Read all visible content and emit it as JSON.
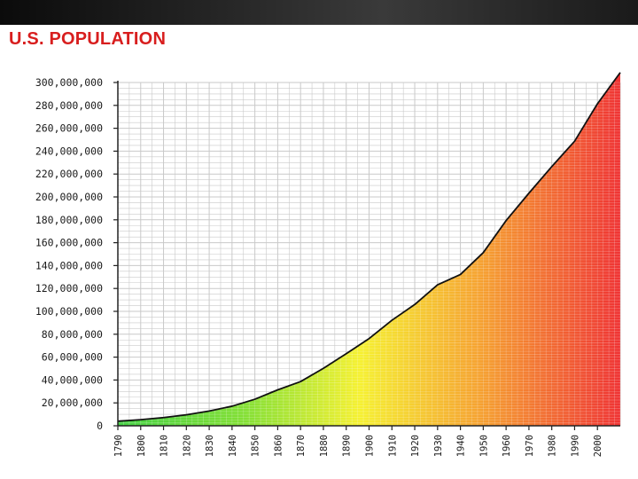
{
  "title": "U.S. POPULATION",
  "colors": {
    "title": "#d81e1e",
    "grid": "#c9c9c9",
    "curve": "#111111",
    "fill_low": "#33cc33",
    "fill_mid": "#f5f01e",
    "fill_high": "#ee2222"
  },
  "chart_data": {
    "type": "area",
    "title": "U.S. POPULATION",
    "xlabel": "",
    "ylabel": "",
    "xlim": [
      1790,
      2010
    ],
    "ylim": [
      0,
      300000000
    ],
    "grid": true,
    "x_ticks": [
      "1790",
      "1800",
      "1810",
      "1820",
      "1830",
      "1840",
      "1850",
      "1860",
      "1870",
      "1880",
      "1890",
      "1900",
      "1910",
      "1920",
      "1930",
      "1940",
      "1950",
      "1960",
      "1970",
      "1980",
      "1990",
      "2000"
    ],
    "y_ticks": [
      "0",
      "20,000,000",
      "40,000,000",
      "60,000,000",
      "80,000,000",
      "100,000,000",
      "120,000,000",
      "140,000,000",
      "160,000,000",
      "180,000,000",
      "200,000,000",
      "220,000,000",
      "240,000,000",
      "260,000,000",
      "280,000,000",
      "300,000,000"
    ],
    "series": [
      {
        "x": [
          1790,
          1800,
          1810,
          1820,
          1830,
          1840,
          1850,
          1860,
          1870,
          1880,
          1890,
          1900,
          1910,
          1920,
          1930,
          1940,
          1950,
          1960,
          1970,
          1980,
          1990,
          2000,
          2010
        ],
        "y": [
          4000000,
          5300000,
          7200000,
          9600000,
          12900000,
          17100000,
          23200000,
          31400000,
          38600000,
          50200000,
          63000000,
          76200000,
          92200000,
          106000000,
          123200000,
          132200000,
          151300000,
          179300000,
          203300000,
          226500000,
          248700000,
          281400000,
          308700000
        ]
      }
    ]
  }
}
